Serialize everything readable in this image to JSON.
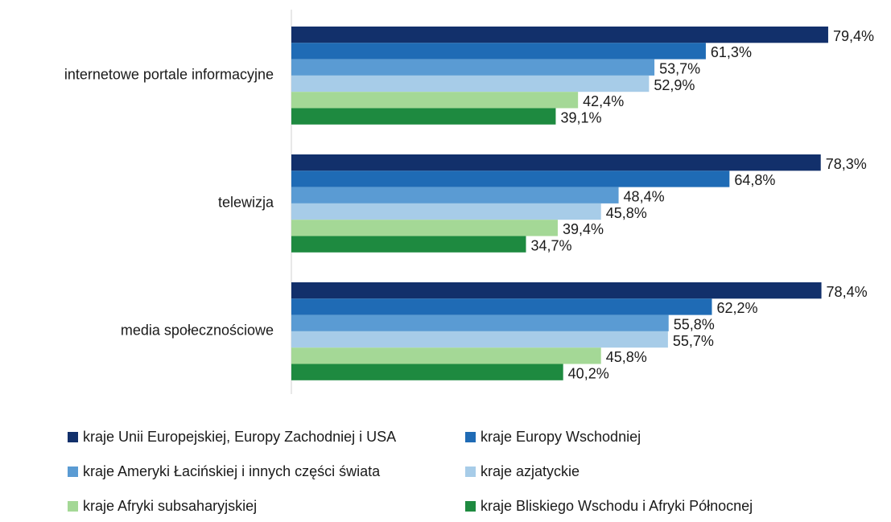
{
  "chart_data": {
    "type": "hbar",
    "categories": [
      "internetowe portale informacyjne",
      "telewizja",
      "media społecznościowe"
    ],
    "xlim": [
      0,
      85
    ],
    "legend": "bottom",
    "series": [
      {
        "name": "kraje Unii Europejskiej, Europy Zachodniej i USA",
        "color": "#12306b",
        "values": [
          79.4,
          78.3,
          78.4
        ],
        "value_labels": [
          "79,4%",
          "78,3%",
          "78,4%"
        ]
      },
      {
        "name": "kraje Europy Wschodniej",
        "color": "#1f6bb5",
        "values": [
          61.3,
          64.8,
          62.2
        ],
        "value_labels": [
          "61,3%",
          "64,8%",
          "62,2%"
        ]
      },
      {
        "name": "kraje Ameryki Łacińskiej i innych części świata",
        "color": "#5a9bd3",
        "values": [
          53.7,
          48.4,
          55.8
        ],
        "value_labels": [
          "53,7%",
          "48,4%",
          "55,8%"
        ]
      },
      {
        "name": "kraje azjatyckie",
        "color": "#a7cce8",
        "values": [
          52.9,
          45.8,
          55.7
        ],
        "value_labels": [
          "52,9%",
          "45,8%",
          "55,7%"
        ]
      },
      {
        "name": "kraje Afryki subsaharyjskiej",
        "color": "#a4d896",
        "values": [
          42.4,
          39.4,
          45.8
        ],
        "value_labels": [
          "42,4%",
          "39,4%",
          "45,8%"
        ]
      },
      {
        "name": "kraje Bliskiego Wschodu i Afryki Północnej",
        "color": "#1e8a40",
        "values": [
          39.1,
          34.7,
          40.2
        ],
        "value_labels": [
          "39,1%",
          "34,7%",
          "40,2%"
        ]
      }
    ]
  }
}
